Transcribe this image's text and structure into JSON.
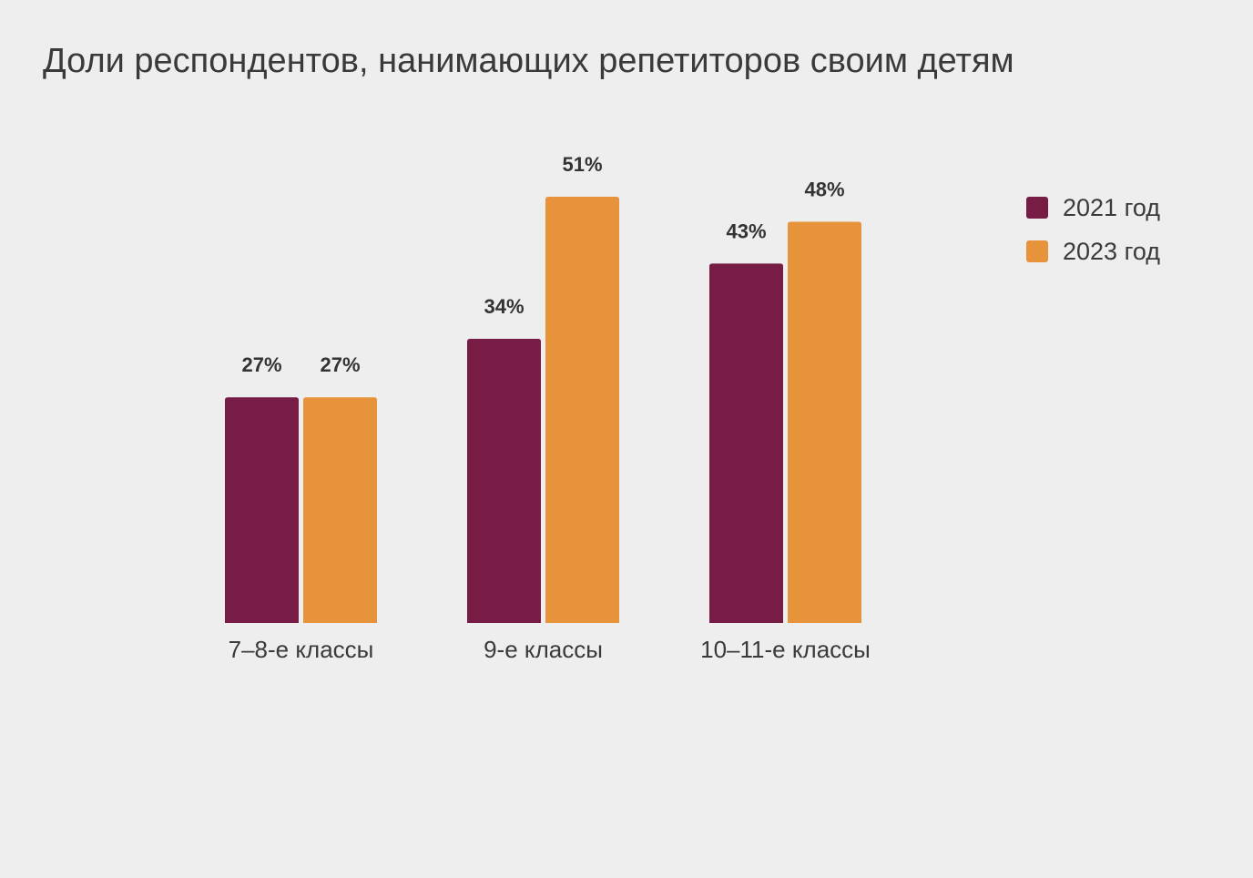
{
  "chart_data": {
    "type": "bar",
    "title": "Доли респондентов, нанимающих репетиторов своим детям",
    "categories": [
      "7–8-е классы",
      "9-е классы",
      "10–11-е классы"
    ],
    "series": [
      {
        "name": "2021 год",
        "color": "#761c45",
        "values": [
          27,
          34,
          43
        ],
        "labels": [
          "27%",
          "34%",
          "43%"
        ]
      },
      {
        "name": "2023 год",
        "color": "#e7933b",
        "values": [
          27,
          51,
          48
        ],
        "labels": [
          "27%",
          "51%",
          "48%"
        ]
      }
    ],
    "xlabel": "",
    "ylabel": "",
    "ylim": [
      0,
      51
    ],
    "grid": false,
    "legend_position": "right"
  }
}
